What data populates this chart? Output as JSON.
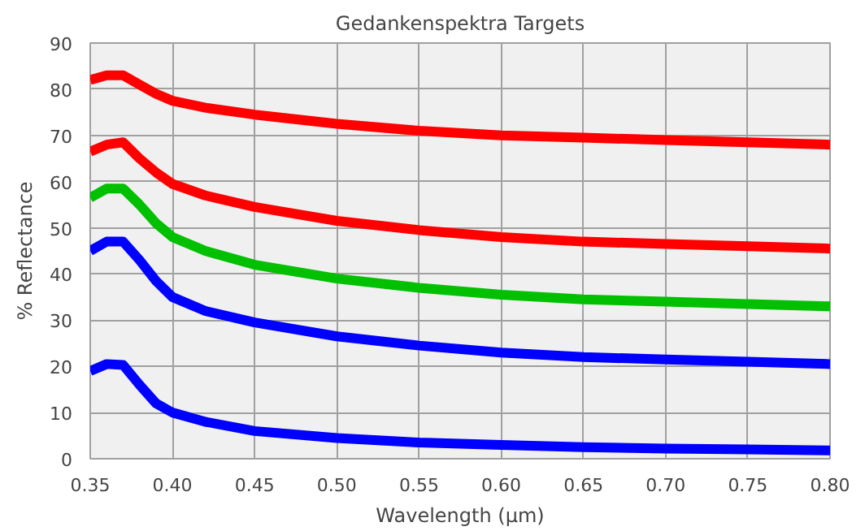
{
  "chart_data": {
    "type": "line",
    "title": "Gedankenspektra Targets",
    "xlabel": "Wavelength (µm)",
    "ylabel": "% Reflectance",
    "x": [
      0.35,
      0.36,
      0.37,
      0.38,
      0.39,
      0.4,
      0.42,
      0.45,
      0.5,
      0.55,
      0.6,
      0.65,
      0.7,
      0.75,
      0.8
    ],
    "series": [
      {
        "color": "#ff0000",
        "values": [
          82,
          83,
          83,
          81,
          79,
          77.5,
          76,
          74.5,
          72.5,
          71,
          70,
          69.5,
          69,
          68.5,
          68
        ]
      },
      {
        "color": "#ff0000",
        "values": [
          66.5,
          68,
          68.5,
          65,
          62,
          59.5,
          57,
          54.5,
          51.5,
          49.5,
          48,
          47,
          46.5,
          46,
          45.5
        ]
      },
      {
        "color": "#00c000",
        "values": [
          56.5,
          58.5,
          58.5,
          55,
          51,
          48,
          45,
          42,
          39,
          37,
          35.5,
          34.5,
          34,
          33.5,
          33
        ]
      },
      {
        "color": "#0000ff",
        "values": [
          45,
          47,
          47,
          43,
          38.5,
          35,
          32,
          29.5,
          26.5,
          24.5,
          23,
          22,
          21.5,
          21,
          20.5
        ]
      },
      {
        "color": "#0000ff",
        "values": [
          19,
          20.5,
          20.3,
          16,
          12,
          10,
          8,
          6,
          4.5,
          3.5,
          3,
          2.5,
          2.2,
          2,
          1.8
        ]
      }
    ],
    "xlim": [
      0.35,
      0.8
    ],
    "xticks": [
      {
        "value": 0.35,
        "label": "0.35"
      },
      {
        "value": 0.4,
        "label": "0.40"
      },
      {
        "value": 0.45,
        "label": "0.45"
      },
      {
        "value": 0.5,
        "label": "0.50"
      },
      {
        "value": 0.55,
        "label": "0.55"
      },
      {
        "value": 0.6,
        "label": "0.60"
      },
      {
        "value": 0.65,
        "label": "0.65"
      },
      {
        "value": 0.7,
        "label": "0.70"
      },
      {
        "value": 0.75,
        "label": "0.75"
      },
      {
        "value": 0.8,
        "label": "0.80"
      }
    ],
    "ylim": [
      0,
      90
    ],
    "yticks": [
      0,
      10,
      20,
      30,
      40,
      50,
      60,
      70,
      80,
      90
    ],
    "grid": true,
    "marker": "none",
    "line_style": "solid"
  }
}
